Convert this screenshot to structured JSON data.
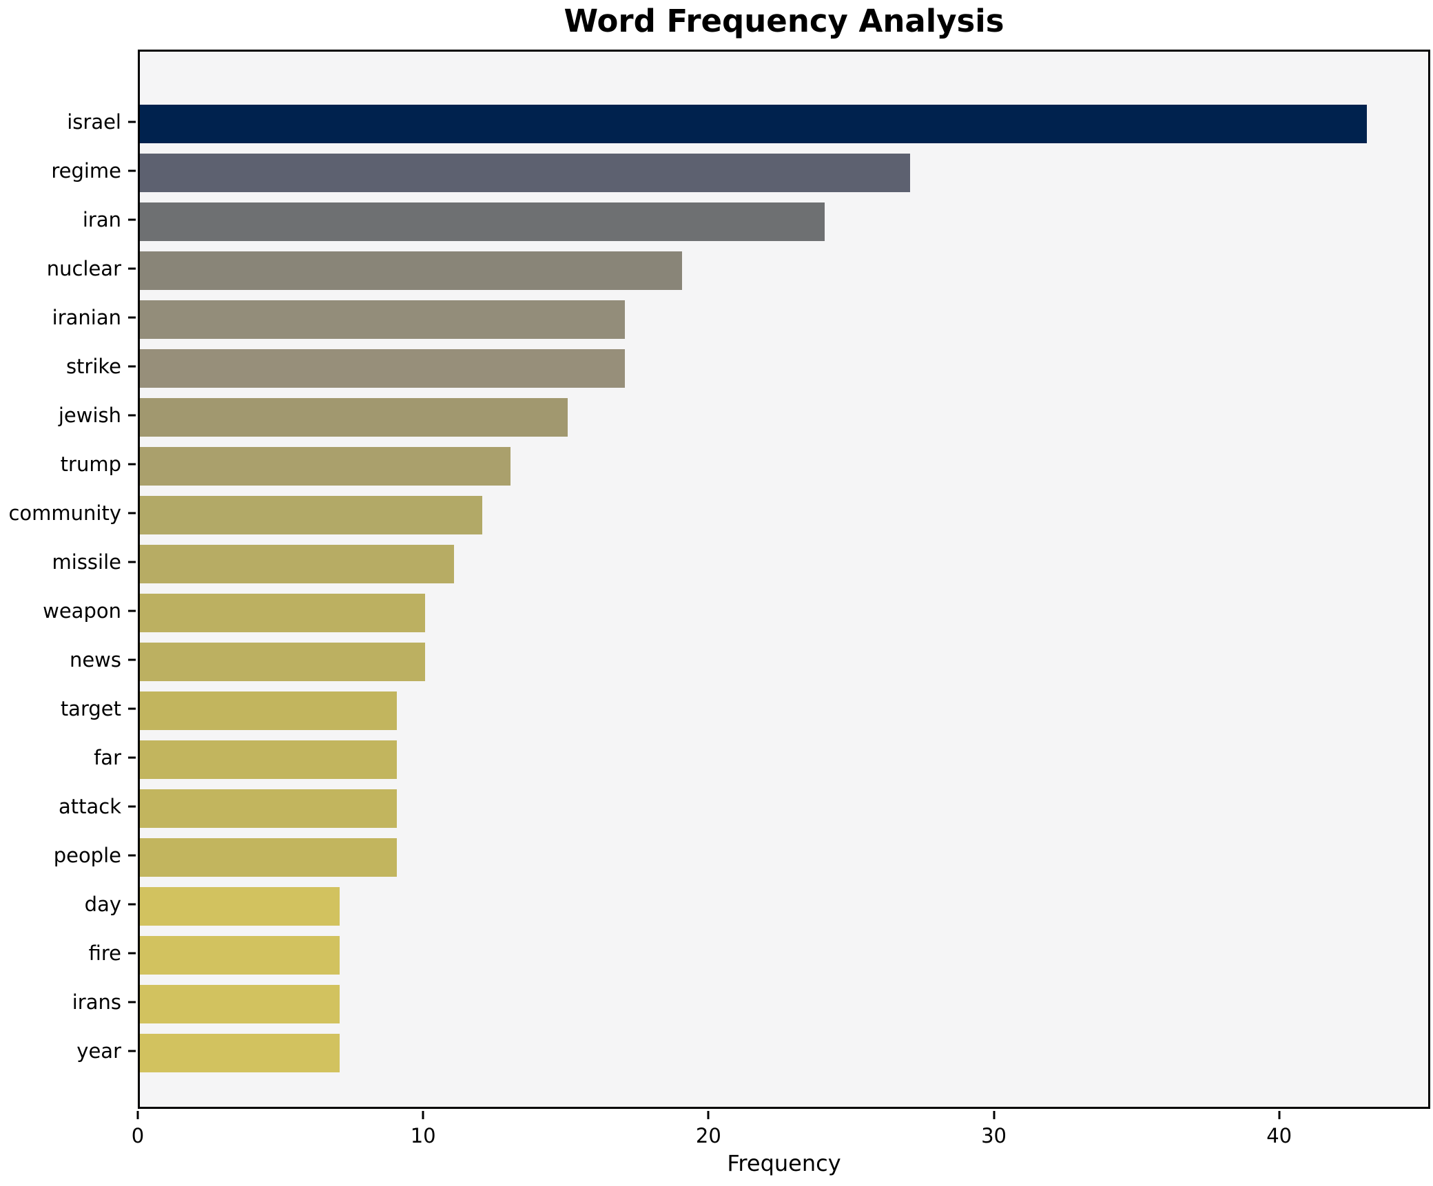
{
  "chart_data": {
    "type": "bar",
    "orientation": "horizontal",
    "title": "Word Frequency Analysis",
    "xlabel": "Frequency",
    "ylabel": "",
    "categories": [
      "israel",
      "regime",
      "iran",
      "nuclear",
      "iranian",
      "strike",
      "jewish",
      "trump",
      "community",
      "missile",
      "weapon",
      "news",
      "target",
      "far",
      "attack",
      "people",
      "day",
      "fire",
      "irans",
      "year"
    ],
    "values": [
      43,
      27,
      24,
      19,
      17,
      17,
      15,
      13,
      12,
      11,
      10,
      10,
      9,
      9,
      9,
      9,
      7,
      7,
      7,
      7
    ],
    "bar_colors": [
      "#00224e",
      "#5d6170",
      "#6e7072",
      "#898578",
      "#938d7a",
      "#978f7a",
      "#a1986f",
      "#aaa06c",
      "#b2a967",
      "#b7ac64",
      "#bcb061",
      "#bcb061",
      "#c2b55e",
      "#c2b55e",
      "#c2b55e",
      "#c2b55e",
      "#d2c25f",
      "#d2c25f",
      "#d2c25f",
      "#d2c25f"
    ],
    "xlim": [
      0,
      45.15
    ],
    "xticks": [
      0,
      10,
      20,
      30,
      40
    ],
    "grid": false,
    "legend": "none",
    "plot_background": "#f5f5f6",
    "figure_background": "#ffffff",
    "spine_color": "#000000"
  }
}
